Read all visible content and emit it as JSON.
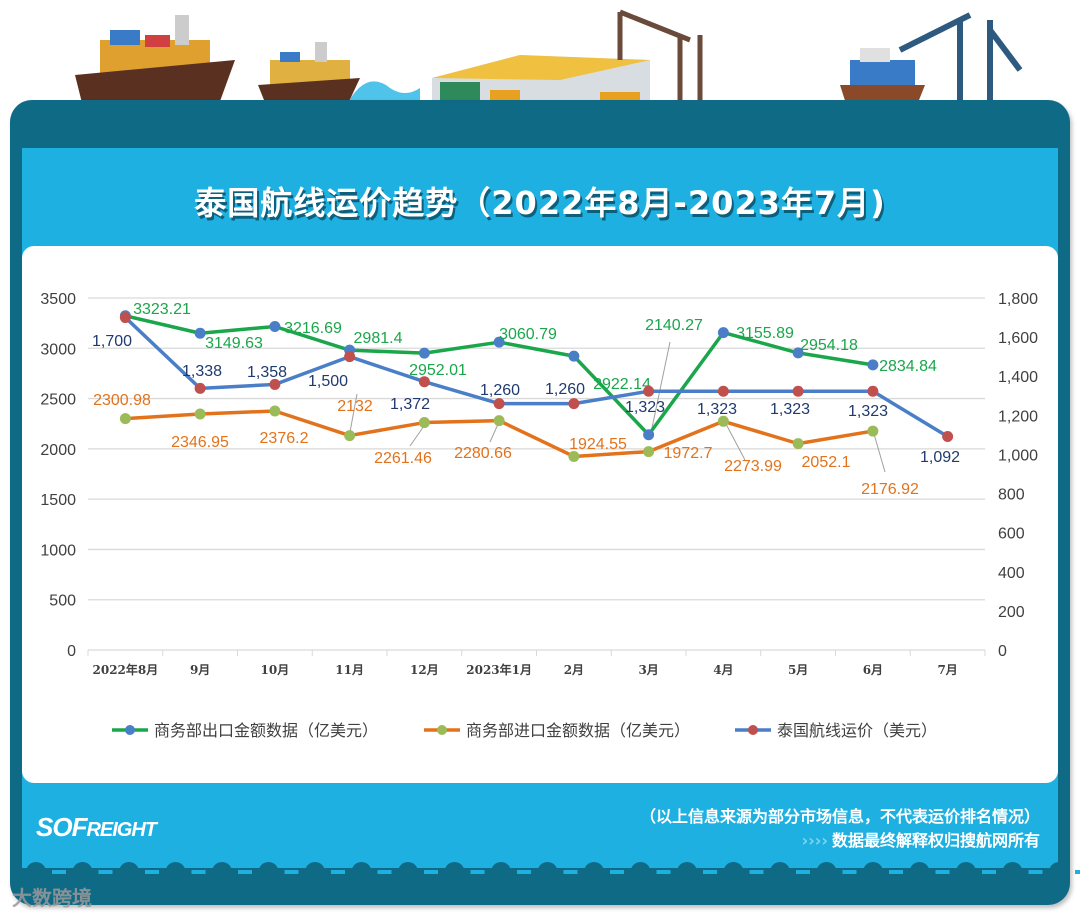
{
  "title": "泰国航线运价趋势（2022年8月-2023年7月)",
  "footer": {
    "note": "（以上信息来源为部分市场信息，不代表运价排名情况）",
    "rights_arrows": "››››",
    "rights": "数据最终解释权归搜航网所有",
    "logo": "SOFREIGHT",
    "watermark": "大数跨境"
  },
  "chart_data": {
    "type": "line",
    "categories": [
      "2022年8月",
      "9月",
      "10月",
      "11月",
      "12月",
      "2023年1月",
      "2月",
      "3月",
      "4月",
      "5月",
      "6月",
      "7月"
    ],
    "y_left": {
      "range": [
        0,
        3500
      ],
      "ticks": [
        "0",
        "500",
        "1000",
        "1500",
        "2000",
        "2500",
        "3000",
        "3500"
      ]
    },
    "y_right": {
      "range": [
        0,
        1800
      ],
      "ticks": [
        "0",
        "200",
        "400",
        "600",
        "800",
        "1,000",
        "1,200",
        "1,400",
        "1,600",
        "1,800"
      ]
    },
    "grid": true,
    "legend_position": "bottom",
    "series": [
      {
        "name": "商务部出口金额数据（亿美元）",
        "axis": "left",
        "line_color": "#1aa64a",
        "marker_color": "#4a7fc8",
        "label_color": "#1aa64a",
        "values": [
          3323.21,
          3149.63,
          3216.69,
          2981.4,
          2952.01,
          3060.79,
          2922.14,
          2140.27,
          3155.89,
          2954.18,
          2834.84,
          null
        ],
        "labels": [
          "3323.21",
          "3149.63",
          "3216.69",
          "2981.4",
          "2952.01",
          "3060.79",
          "2922.14",
          "2140.27",
          "3155.89",
          "2954.18",
          "2834.84",
          ""
        ]
      },
      {
        "name": "商务部进口金额数据（亿美元）",
        "axis": "left",
        "line_color": "#e2731c",
        "marker_color": "#9bbb59",
        "label_color": "#e2731c",
        "values": [
          2300.98,
          2346.95,
          2376.2,
          2132,
          2261.46,
          2280.66,
          1924.55,
          1972.7,
          2273.99,
          2052.1,
          2176.92,
          null
        ],
        "labels": [
          "2300.98",
          "2346.95",
          "2376.2",
          "2132",
          "2261.46",
          "2280.66",
          "1924.55",
          "1972.7",
          "2273.99",
          "2052.1",
          "2176.92",
          ""
        ]
      },
      {
        "name": "泰国航线运价（美元）",
        "axis": "right",
        "line_color": "#4a7fc8",
        "marker_color": "#c0504d",
        "label_color": "#1f3a6e",
        "values": [
          1700,
          1338,
          1358,
          1500,
          1372,
          1260,
          1260,
          1323,
          1323,
          1323,
          1323,
          1092
        ],
        "labels": [
          "1,700",
          "1,338",
          "1,358",
          "1,500",
          "1,372",
          "1,260",
          "1,260",
          "1,323",
          "1,323",
          "1,323",
          "1,323",
          "1,092"
        ]
      }
    ]
  }
}
